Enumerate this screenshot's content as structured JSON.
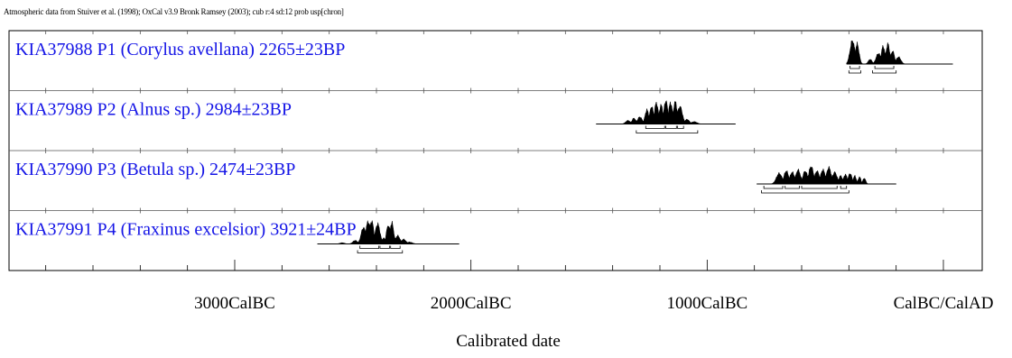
{
  "chart_data": {
    "type": "distribution",
    "header": "Atmospheric data from Stuiver et al. (1998); OxCal v3.9 Bronk Ramsey (2003); cub r:4 sd:12 prob usp[chron]",
    "xlabel": "Calibrated date",
    "x_ticks": [
      {
        "value": -3000,
        "label": "3000CalBC"
      },
      {
        "value": -2000,
        "label": "2000CalBC"
      },
      {
        "value": -1000,
        "label": "1000CalBC"
      },
      {
        "value": 0,
        "label": "CalBC/CalAD"
      }
    ],
    "xlim": [
      -4500,
      250
    ],
    "minor_tick_step": 200,
    "series_color": "#000000",
    "label_color": "#1414e6",
    "samples": [
      {
        "lab_code": "KIA37988",
        "name": "P1 (Corylus avellana)",
        "date": "2265±23BP",
        "range": [
          -410,
          40
        ],
        "peaks": [
          {
            "center": -385,
            "width": 10,
            "height": 1.0
          },
          {
            "center": -365,
            "width": 8,
            "height": 0.85
          },
          {
            "center": -310,
            "width": 8,
            "height": 0.2
          },
          {
            "center": -275,
            "width": 10,
            "height": 0.45
          },
          {
            "center": -255,
            "width": 8,
            "height": 0.75
          },
          {
            "center": -235,
            "width": 8,
            "height": 0.85
          },
          {
            "center": -215,
            "width": 8,
            "height": 0.55
          },
          {
            "center": -190,
            "width": 10,
            "height": 0.3
          }
        ],
        "brackets_1sigma": [
          [
            -395,
            -355
          ],
          [
            -290,
            -210
          ]
        ],
        "brackets_2sigma": [
          [
            -400,
            -350
          ],
          [
            -300,
            -200
          ]
        ]
      },
      {
        "lab_code": "KIA37989",
        "name": "P2 (Alnus sp.)",
        "date": "2984±23BP",
        "range": [
          -1470,
          -880
        ],
        "peaks": [
          {
            "center": -1335,
            "width": 10,
            "height": 0.15
          },
          {
            "center": -1310,
            "width": 8,
            "height": 0.25
          },
          {
            "center": -1285,
            "width": 10,
            "height": 0.3
          },
          {
            "center": -1255,
            "width": 8,
            "height": 0.6
          },
          {
            "center": -1235,
            "width": 8,
            "height": 0.75
          },
          {
            "center": -1215,
            "width": 8,
            "height": 0.9
          },
          {
            "center": -1195,
            "width": 8,
            "height": 0.8
          },
          {
            "center": -1175,
            "width": 8,
            "height": 1.0
          },
          {
            "center": -1155,
            "width": 8,
            "height": 0.9
          },
          {
            "center": -1135,
            "width": 8,
            "height": 0.95
          },
          {
            "center": -1115,
            "width": 10,
            "height": 0.75
          },
          {
            "center": -1085,
            "width": 10,
            "height": 0.2
          },
          {
            "center": -1055,
            "width": 12,
            "height": 0.1
          }
        ],
        "brackets_1sigma": [
          [
            -1260,
            -1180
          ],
          [
            -1175,
            -1130
          ],
          [
            -1125,
            -1100
          ]
        ],
        "brackets_2sigma": [
          [
            -1300,
            -1040
          ]
        ]
      },
      {
        "lab_code": "KIA37990",
        "name": "P3 (Betula sp.)",
        "date": "2474±23BP",
        "range": [
          -790,
          -200
        ],
        "peaks": [
          {
            "center": -695,
            "width": 12,
            "height": 0.45
          },
          {
            "center": -665,
            "width": 10,
            "height": 0.55
          },
          {
            "center": -640,
            "width": 10,
            "height": 0.5
          },
          {
            "center": -615,
            "width": 10,
            "height": 0.6
          },
          {
            "center": -585,
            "width": 10,
            "height": 0.55
          },
          {
            "center": -560,
            "width": 10,
            "height": 0.75
          },
          {
            "center": -535,
            "width": 10,
            "height": 0.55
          },
          {
            "center": -510,
            "width": 10,
            "height": 0.6
          },
          {
            "center": -485,
            "width": 10,
            "height": 0.7
          },
          {
            "center": -460,
            "width": 10,
            "height": 0.5
          },
          {
            "center": -435,
            "width": 8,
            "height": 0.35
          },
          {
            "center": -415,
            "width": 8,
            "height": 0.4
          },
          {
            "center": -395,
            "width": 8,
            "height": 0.45
          },
          {
            "center": -375,
            "width": 6,
            "height": 0.35
          },
          {
            "center": -355,
            "width": 6,
            "height": 0.3
          },
          {
            "center": -335,
            "width": 6,
            "height": 0.25
          }
        ],
        "brackets_1sigma": [
          [
            -760,
            -680
          ],
          [
            -670,
            -610
          ],
          [
            -600,
            -450
          ],
          [
            -435,
            -410
          ]
        ],
        "brackets_2sigma": [
          [
            -770,
            -400
          ]
        ]
      },
      {
        "lab_code": "KIA37991",
        "name": "P4 (Fraxinus excelsior)",
        "date": "3921±24BP",
        "range": [
          -2650,
          -2050
        ],
        "peaks": [
          {
            "center": -2545,
            "width": 10,
            "height": 0.05
          },
          {
            "center": -2490,
            "width": 10,
            "height": 0.15
          },
          {
            "center": -2455,
            "width": 10,
            "height": 0.7
          },
          {
            "center": -2435,
            "width": 10,
            "height": 0.95
          },
          {
            "center": -2420,
            "width": 8,
            "height": 1.0
          },
          {
            "center": -2395,
            "width": 10,
            "height": 0.85
          },
          {
            "center": -2370,
            "width": 8,
            "height": 0.25
          },
          {
            "center": -2350,
            "width": 8,
            "height": 0.8
          },
          {
            "center": -2335,
            "width": 8,
            "height": 0.9
          },
          {
            "center": -2310,
            "width": 10,
            "height": 0.35
          },
          {
            "center": -2285,
            "width": 10,
            "height": 0.2
          },
          {
            "center": -2260,
            "width": 12,
            "height": 0.08
          }
        ],
        "brackets_1sigma": [
          [
            -2470,
            -2390
          ],
          [
            -2385,
            -2345
          ],
          [
            -2340,
            -2300
          ]
        ],
        "brackets_2sigma": [
          [
            -2480,
            -2290
          ]
        ]
      }
    ]
  }
}
